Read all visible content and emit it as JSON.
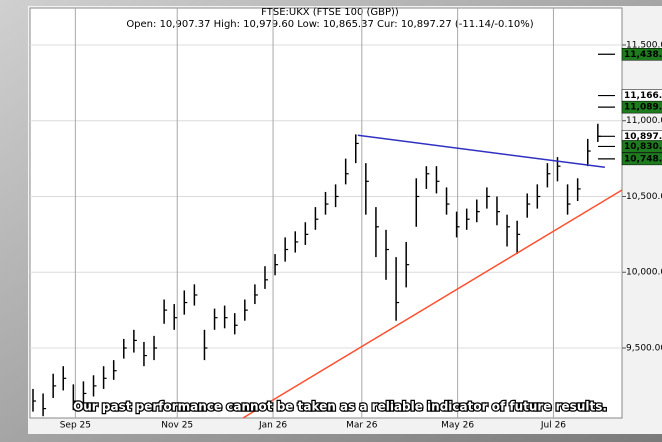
{
  "chart_data": {
    "type": "ohlc",
    "title": "FTSE:UKX (FTSE 100 (GBP))",
    "subtitle": "Open: 10,907.37 High: 10,979.60 Low: 10,865.37 Cur: 10,897.27 (-11.14/-0.10%)",
    "annotation": "Our past performance cannot be taken as a reliable indicator of future results.",
    "color": "#000000",
    "close": [
      9150,
      9100,
      9250,
      9300,
      9150,
      9200,
      9250,
      9300,
      9350,
      9500,
      9550,
      9450,
      9500,
      9750,
      9700,
      9800,
      9850,
      9500,
      9700,
      9700,
      9650,
      9750,
      9850,
      9950,
      10050,
      10150,
      10200,
      10250,
      10350,
      10450,
      10500,
      10650,
      10850,
      10600,
      10300,
      10150,
      9800,
      10050,
      10500,
      10650,
      10600,
      10450,
      10300,
      10350,
      10400,
      10500,
      10400,
      10300,
      10250,
      10450,
      10500,
      10650,
      10700,
      10450,
      10550,
      10800,
      10897
    ],
    "high": [
      9230,
      9200,
      9330,
      9380,
      9260,
      9280,
      9320,
      9380,
      9420,
      9560,
      9620,
      9540,
      9580,
      9820,
      9790,
      9880,
      9920,
      9620,
      9760,
      9780,
      9730,
      9820,
      9920,
      10040,
      10120,
      10230,
      10270,
      10330,
      10430,
      10530,
      10580,
      10750,
      10910,
      10720,
      10430,
      10280,
      10100,
      10200,
      10620,
      10700,
      10700,
      10560,
      10400,
      10420,
      10480,
      10560,
      10500,
      10380,
      10340,
      10520,
      10580,
      10720,
      10760,
      10580,
      10620,
      10880,
      10980
    ],
    "low": [
      9080,
      9050,
      9170,
      9220,
      9090,
      9130,
      9180,
      9230,
      9290,
      9430,
      9470,
      9380,
      9420,
      9660,
      9620,
      9720,
      9780,
      9420,
      9620,
      9630,
      9590,
      9680,
      9790,
      9890,
      9980,
      10070,
      10130,
      10180,
      10280,
      10380,
      10430,
      10580,
      10720,
      10380,
      10100,
      9950,
      9680,
      9900,
      10300,
      10550,
      10520,
      10380,
      10230,
      10280,
      10330,
      10420,
      10310,
      10170,
      10120,
      10360,
      10420,
      10560,
      10600,
      10380,
      10470,
      10700,
      10860
    ],
    "xlim": [
      0,
      58
    ],
    "ylim": [
      9038,
      11744
    ],
    "xticks": [
      {
        "value": 4.2,
        "label": "Sep 25"
      },
      {
        "value": 14.3,
        "label": "Nov 25"
      },
      {
        "value": 23.8,
        "label": "Jan 26"
      },
      {
        "value": 32.6,
        "label": "Mar 26"
      },
      {
        "value": 42.1,
        "label": "May 26"
      },
      {
        "value": 51.6,
        "label": "Jul 26"
      }
    ],
    "yticks": [
      {
        "value": 11500,
        "label": "11,500.00"
      },
      {
        "value": 11000,
        "label": "11,000.00"
      },
      {
        "value": 10500,
        "label": "10,500.00"
      },
      {
        "value": 10000,
        "label": "10,000.00"
      },
      {
        "value": 9500,
        "label": "9,500.00"
      }
    ],
    "grid": true,
    "lines": [
      {
        "color": "#3030c0",
        "x": [
          32.2,
          56.7
        ],
        "y": [
          10904,
          10693
        ]
      },
      {
        "color": "#ff5030",
        "x": [
          20.5,
          58.4
        ],
        "y": [
          9025,
          10543
        ]
      }
    ],
    "levels": [
      {
        "value": 11438.7,
        "label": "11,438.7",
        "color": "#1e7b1e"
      },
      {
        "value": 11166.1,
        "label": "11,166.1",
        "color": "#ffffff"
      },
      {
        "value": 11089.8,
        "label": "11,089.8",
        "color": "#1e7b1e"
      },
      {
        "value": 10897.2,
        "label": "10,897.2",
        "color": "#ffffff"
      },
      {
        "value": 10830.4,
        "label": "10,830.4",
        "color": "#1e7b1e"
      },
      {
        "value": 10748.3,
        "label": "10,748.3",
        "color": "#1e7b1e"
      }
    ]
  }
}
